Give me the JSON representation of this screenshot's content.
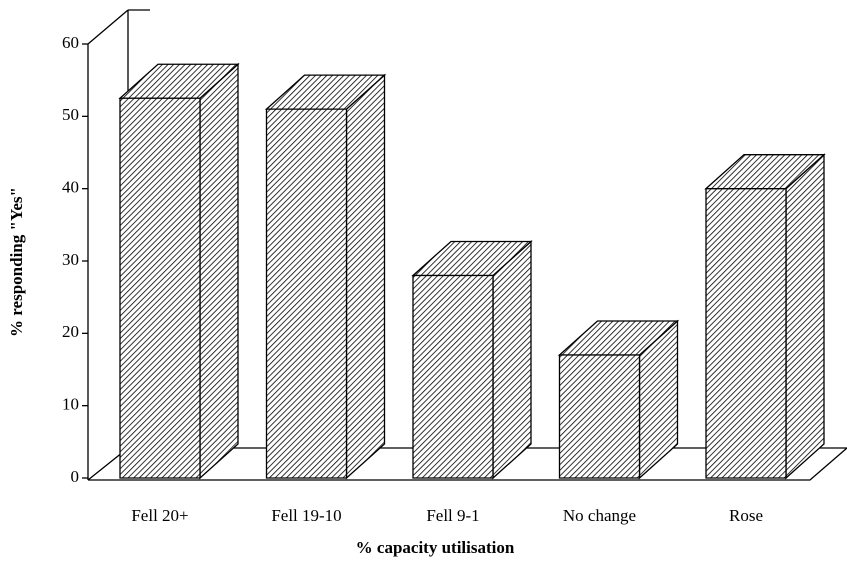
{
  "chart_data": {
    "type": "bar3d",
    "x_label": "% capacity utilisation",
    "y_label": "% responding \"Yes\"",
    "categories": [
      "Fell 20+",
      "Fell 19-10",
      "Fell 9-1",
      "No change",
      "Rose"
    ],
    "values": [
      52.5,
      51,
      28,
      17,
      40
    ],
    "color": "#000000",
    "ylim": [
      0,
      60
    ],
    "yticks": [
      0,
      10,
      20,
      30,
      40,
      50,
      60
    ],
    "grid": false
  }
}
